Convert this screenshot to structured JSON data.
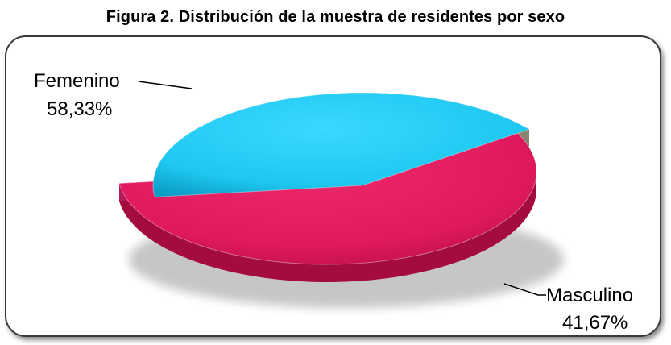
{
  "title": "Figura 2. Distribución de la muestra de residentes por sexo",
  "chart_data": {
    "type": "pie",
    "style": "3d-exploded",
    "categories": [
      "Femenino",
      "Masculino"
    ],
    "values": [
      58.33,
      41.67
    ],
    "value_labels": [
      "58,33%",
      "41,67%"
    ],
    "colors": [
      "#e0195e",
      "#1ec8f0"
    ],
    "legend": "none"
  }
}
